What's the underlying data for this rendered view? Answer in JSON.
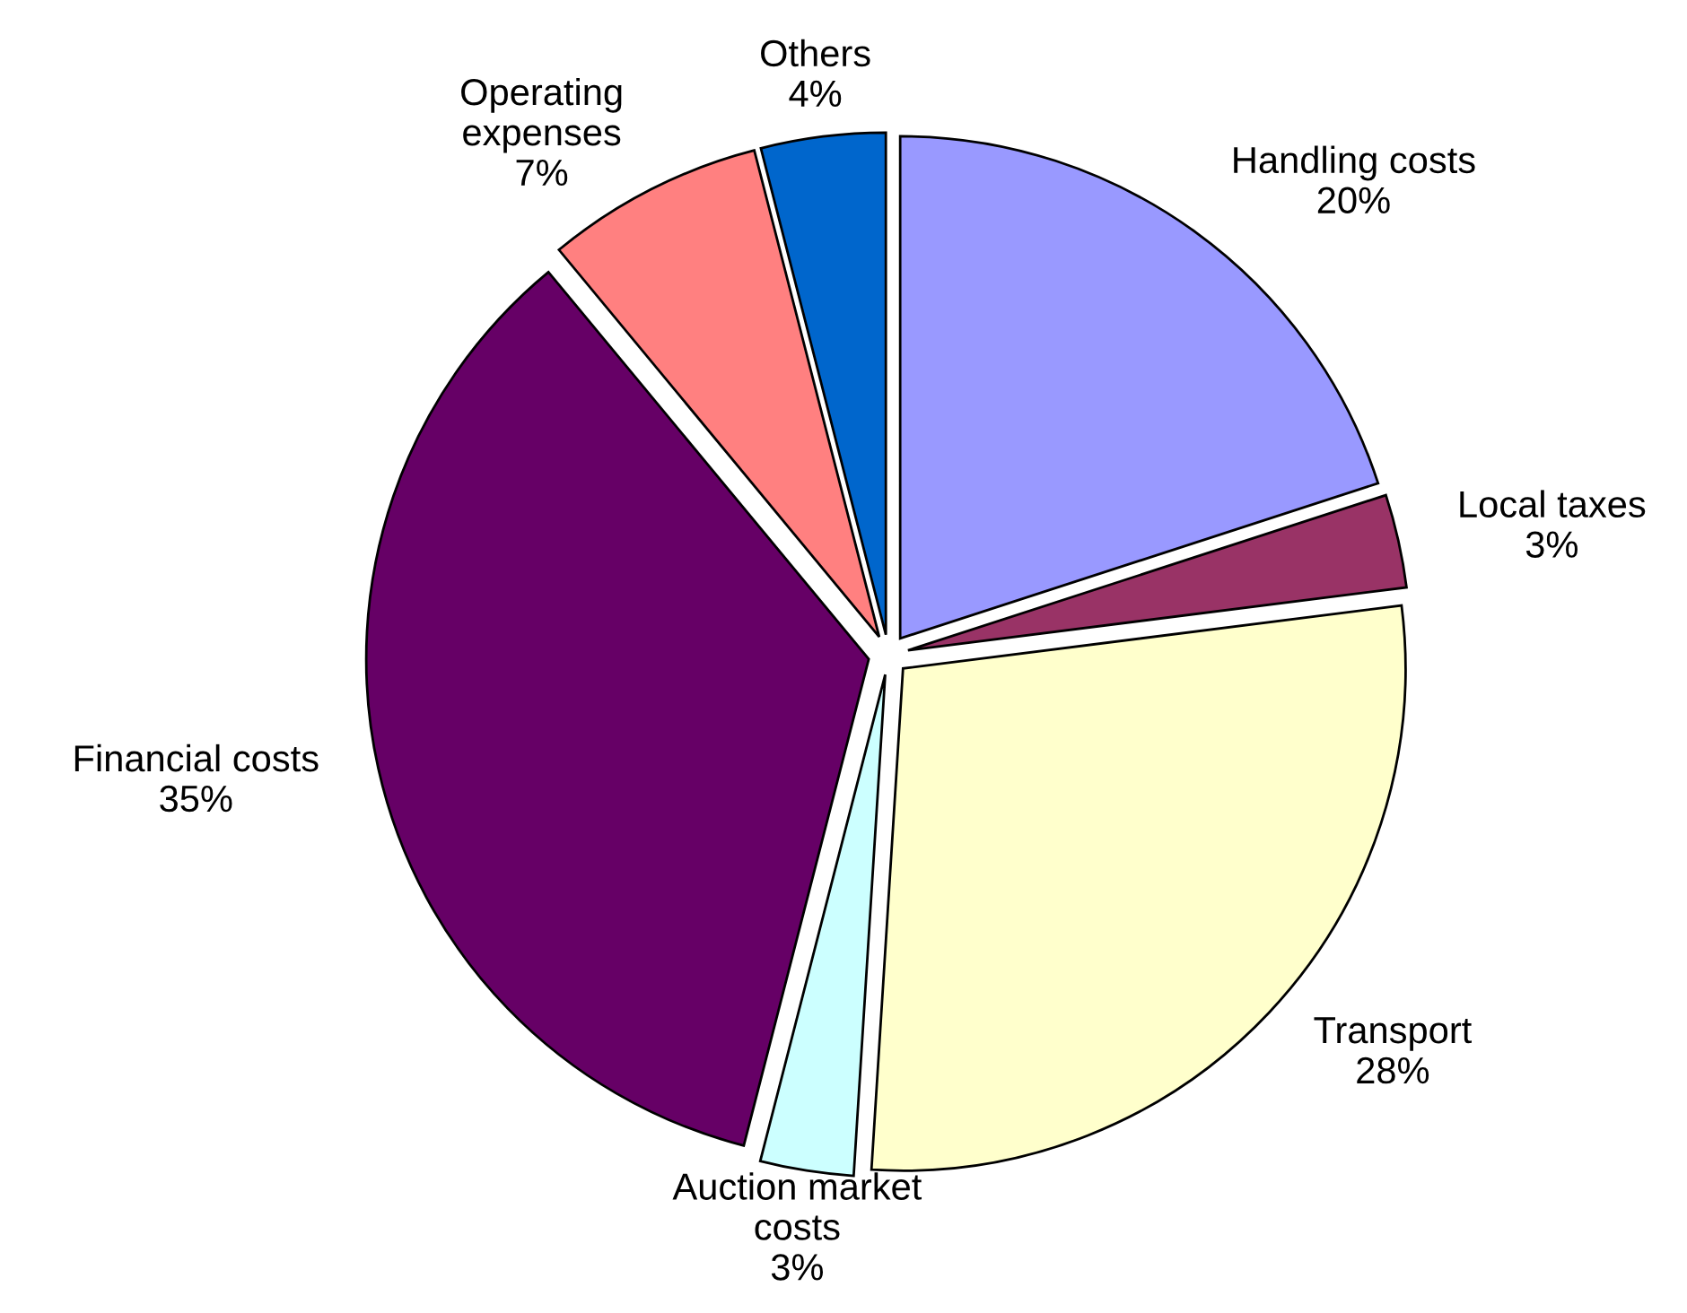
{
  "chart_data": {
    "type": "pie",
    "categories": [
      "Handling costs",
      "Local taxes",
      "Transport",
      "Auction market\ncosts",
      "Financial costs",
      "Operating\nexpenses",
      "Others"
    ],
    "values": [
      20,
      3,
      28,
      3,
      35,
      7,
      4
    ],
    "value_labels": [
      "20%",
      "3%",
      "28%",
      "3%",
      "35%",
      "7%",
      "4%"
    ],
    "colors": [
      "#9999ff",
      "#993366",
      "#ffffcc",
      "#ccffff",
      "#660066",
      "#ff8080",
      "#0066cc"
    ],
    "legend": false
  }
}
